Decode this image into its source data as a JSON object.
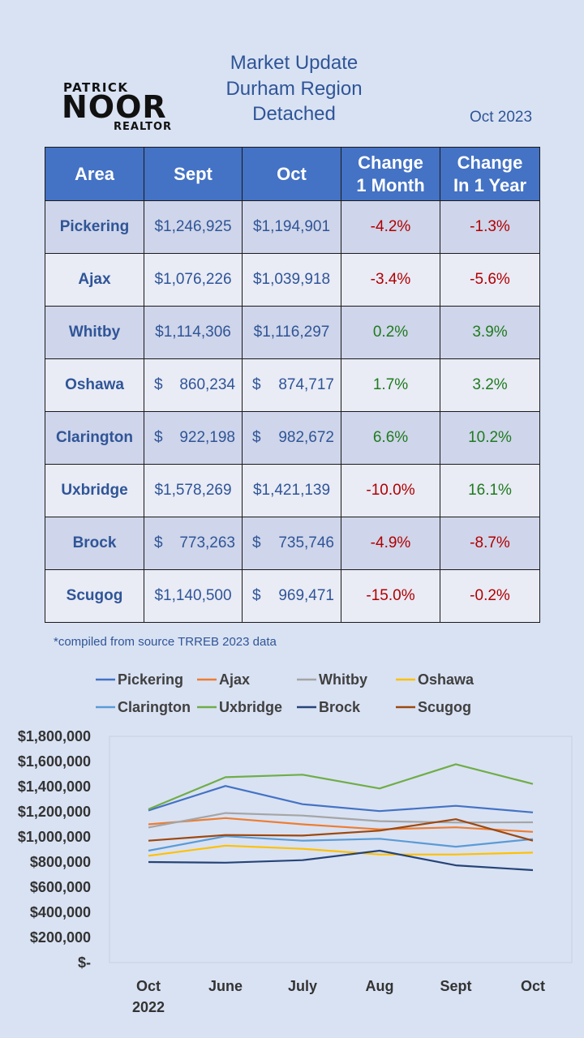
{
  "title": {
    "line1": "Market Update",
    "line2": "Durham Region",
    "line3": "Detached"
  },
  "date": "Oct 2023",
  "logo": {
    "line1": "PATRICK",
    "line2": "NOOR",
    "line3": "REALTOR"
  },
  "table": {
    "headers": [
      [
        "Area"
      ],
      [
        "Sept"
      ],
      [
        "Oct"
      ],
      [
        "Change",
        "1 Month"
      ],
      [
        "Change",
        "In 1 Year"
      ]
    ],
    "rows": [
      {
        "area": "Pickering",
        "sept_sym": "",
        "sept": "$1,246,925",
        "oct_sym": "",
        "oct": "$1,194,901",
        "m": "-4.2%",
        "y": "-1.3%"
      },
      {
        "area": "Ajax",
        "sept_sym": "",
        "sept": "$1,076,226",
        "oct_sym": "",
        "oct": "$1,039,918",
        "m": "-3.4%",
        "y": "-5.6%"
      },
      {
        "area": "Whitby",
        "sept_sym": "",
        "sept": "$1,114,306",
        "oct_sym": "",
        "oct": "$1,116,297",
        "m": "0.2%",
        "y": "3.9%"
      },
      {
        "area": "Oshawa",
        "sept_sym": "$",
        "sept": "860,234",
        "oct_sym": "$",
        "oct": "874,717",
        "m": "1.7%",
        "y": "3.2%"
      },
      {
        "area": "Clarington",
        "sept_sym": "$",
        "sept": "922,198",
        "oct_sym": "$",
        "oct": "982,672",
        "m": "6.6%",
        "y": "10.2%"
      },
      {
        "area": "Uxbridge",
        "sept_sym": "",
        "sept": "$1,578,269",
        "oct_sym": "",
        "oct": "$1,421,139",
        "m": "-10.0%",
        "y": "16.1%"
      },
      {
        "area": "Brock",
        "sept_sym": "$",
        "sept": "773,263",
        "oct_sym": "$",
        "oct": "735,746",
        "m": "-4.9%",
        "y": "-8.7%"
      },
      {
        "area": "Scugog",
        "sept_sym": "",
        "sept": "$1,140,500",
        "oct_sym": "$",
        "oct": "969,471",
        "m": "-15.0%",
        "y": "-0.2%"
      }
    ]
  },
  "note": "*compiled from source TRREB 2023 data",
  "chart_data": {
    "type": "line",
    "title": "",
    "xlabel": "",
    "ylabel": "",
    "categories": [
      [
        "Oct",
        "2022"
      ],
      [
        "June"
      ],
      [
        "July"
      ],
      [
        "Aug"
      ],
      [
        "Sept"
      ],
      [
        "Oct"
      ]
    ],
    "ylim": [
      0,
      1800000
    ],
    "yticks": [
      {
        "v": 1800000,
        "label": "$1,800,000"
      },
      {
        "v": 1600000,
        "label": "$1,600,000"
      },
      {
        "v": 1400000,
        "label": "$1,400,000"
      },
      {
        "v": 1200000,
        "label": "$1,200,000"
      },
      {
        "v": 1000000,
        "label": "$1,000,000"
      },
      {
        "v": 800000,
        "label": "$800,000"
      },
      {
        "v": 600000,
        "label": "$600,000"
      },
      {
        "v": 400000,
        "label": "$400,000"
      },
      {
        "v": 200000,
        "label": "$200,000"
      },
      {
        "v": 0,
        "label": "$-"
      }
    ],
    "series": [
      {
        "name": "Pickering",
        "color": "#4472c4",
        "values": [
          1210000,
          1405000,
          1260000,
          1205000,
          1246925,
          1194901
        ]
      },
      {
        "name": "Ajax",
        "color": "#ed7d31",
        "values": [
          1100000,
          1150000,
          1100000,
          1060000,
          1076226,
          1039918
        ]
      },
      {
        "name": "Whitby",
        "color": "#a5a5a5",
        "values": [
          1075000,
          1190000,
          1170000,
          1125000,
          1114306,
          1116297
        ]
      },
      {
        "name": "Oshawa",
        "color": "#ffc000",
        "values": [
          850000,
          930000,
          905000,
          860000,
          860234,
          874717
        ]
      },
      {
        "name": "Clarington",
        "color": "#5b9bd5",
        "values": [
          890000,
          1005000,
          970000,
          985000,
          922198,
          982672
        ]
      },
      {
        "name": "Uxbridge",
        "color": "#70ad47",
        "values": [
          1220000,
          1475000,
          1495000,
          1385000,
          1578269,
          1421139
        ]
      },
      {
        "name": "Brock",
        "color": "#264478",
        "values": [
          800000,
          795000,
          815000,
          890000,
          773263,
          735746
        ]
      },
      {
        "name": "Scugog",
        "color": "#9e480e",
        "values": [
          970000,
          1015000,
          1010000,
          1050000,
          1140500,
          969471
        ]
      }
    ]
  }
}
